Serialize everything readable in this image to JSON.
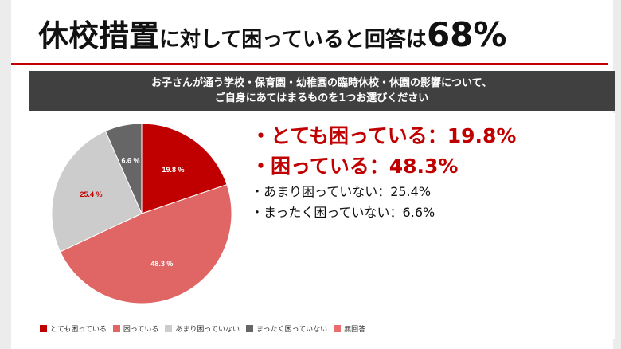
{
  "title": {
    "part1": "休校措置",
    "part2": "に対して困っていると回答は",
    "part3": "68%"
  },
  "question": {
    "line1": "お子さんが通う学校・保育園・幼稚園の臨時休校・休園の影響について、",
    "line2": "ご自身にあてはまるものを1つお選びください"
  },
  "callouts": [
    {
      "text": "・とても困っている：19.8%",
      "emphasis": true
    },
    {
      "text": "・困っている：48.3%",
      "emphasis": true
    },
    {
      "text": "・あまり困っていない：25.4%",
      "emphasis": false
    },
    {
      "text": "・まったく困っていない：6.6%",
      "emphasis": false
    }
  ],
  "colors": {
    "accent": "#c00000",
    "title_rule": "#c00000",
    "question_bg": "#404040"
  },
  "chart_data": {
    "type": "pie",
    "title": "",
    "categories": [
      "とても困っている",
      "困っている",
      "あまり困っていない",
      "まったく困っていない",
      "無回答"
    ],
    "values": [
      19.8,
      48.3,
      25.4,
      6.6,
      0
    ],
    "data_labels": [
      "19.8 %",
      "48.3 %",
      "25.4 %",
      "6.6 %",
      ""
    ],
    "colors": [
      "#c00000",
      "#e06666",
      "#cccccc",
      "#666666",
      "#ea6d6d"
    ],
    "label_colors": [
      "#ffffff",
      "#ffffff",
      "#c00000",
      "#ffffff",
      "#ffffff"
    ],
    "start": "top, clockwise",
    "legend_position": "bottom-left"
  }
}
